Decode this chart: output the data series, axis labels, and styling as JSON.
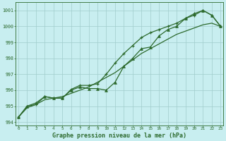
{
  "x": [
    0,
    1,
    2,
    3,
    4,
    5,
    6,
    7,
    8,
    9,
    10,
    11,
    12,
    13,
    14,
    15,
    16,
    17,
    18,
    19,
    20,
    21,
    22,
    23
  ],
  "y_smooth": [
    994.3,
    994.9,
    995.1,
    995.4,
    995.5,
    995.6,
    995.8,
    996.0,
    996.2,
    996.5,
    996.8,
    997.1,
    997.5,
    997.9,
    998.3,
    998.6,
    998.9,
    999.2,
    999.5,
    999.7,
    999.9,
    1000.1,
    1000.2,
    1000.0
  ],
  "y_triangle": [
    994.3,
    995.0,
    995.2,
    995.6,
    995.5,
    995.5,
    996.0,
    996.2,
    996.1,
    996.1,
    996.0,
    996.5,
    997.5,
    998.0,
    998.6,
    998.7,
    999.4,
    999.8,
    1000.0,
    1000.5,
    1000.8,
    1001.0,
    1000.7,
    1000.0
  ],
  "y_plus": [
    994.3,
    995.0,
    995.1,
    995.6,
    995.5,
    995.5,
    996.05,
    996.3,
    996.3,
    996.4,
    997.0,
    997.7,
    998.3,
    998.8,
    999.3,
    999.6,
    999.8,
    1000.0,
    1000.2,
    1000.5,
    1000.7,
    1001.0,
    1000.7,
    1000.0
  ],
  "ylim": [
    993.8,
    1001.5
  ],
  "yticks": [
    994,
    995,
    996,
    997,
    998,
    999,
    1000,
    1001
  ],
  "xlim": [
    -0.3,
    23.3
  ],
  "xticks": [
    0,
    1,
    2,
    3,
    4,
    5,
    6,
    7,
    8,
    9,
    10,
    11,
    12,
    13,
    14,
    15,
    16,
    17,
    18,
    19,
    20,
    21,
    22,
    23
  ],
  "xlabel": "Graphe pression niveau de la mer (hPa)",
  "line_color": "#2d6a2d",
  "bg_color": "#c8eef0",
  "grid_color": "#a0cccc",
  "tick_color": "#2d6a2d",
  "label_color": "#2d6a2d"
}
